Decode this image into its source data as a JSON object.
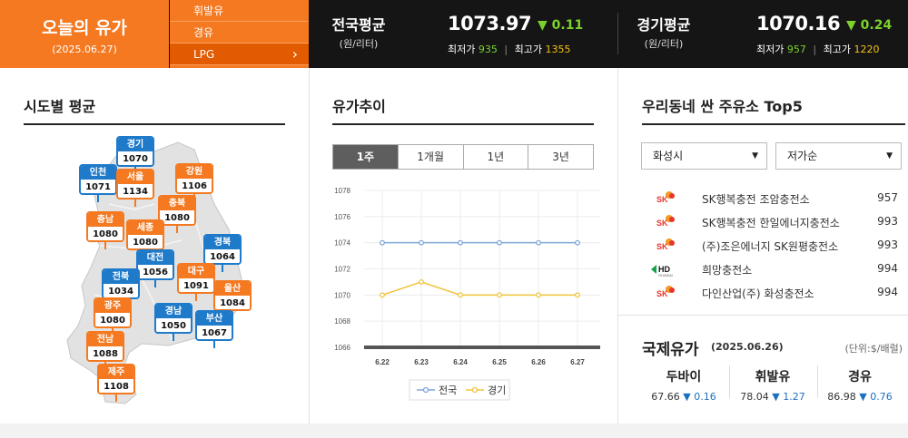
{
  "header": {
    "today_title": "오늘의 유가",
    "today_date": "(2025.06.27)",
    "fuel_tabs": [
      "휘발유",
      "경유",
      "LPG"
    ],
    "fuel_selected": "LPG",
    "national": {
      "label": "전국평균",
      "unit": "(원/리터)",
      "value": "1073.97",
      "change": "▼ 0.11",
      "min_label": "최저가",
      "min": "935",
      "max_label": "최고가",
      "max": "1355"
    },
    "gyeonggi": {
      "label": "경기평균",
      "unit": "(원/리터)",
      "value": "1070.16",
      "change": "▼ 0.24",
      "min_label": "최저가",
      "min": "957",
      "max_label": "최고가",
      "max": "1220"
    }
  },
  "regional": {
    "title": "시도별 평균",
    "regions": [
      {
        "name": "경기",
        "value": "1070",
        "color": "blue"
      },
      {
        "name": "인천",
        "value": "1071",
        "color": "blue"
      },
      {
        "name": "서울",
        "value": "1134",
        "color": "orange"
      },
      {
        "name": "강원",
        "value": "1106",
        "color": "orange"
      },
      {
        "name": "충북",
        "value": "1080",
        "color": "orange"
      },
      {
        "name": "충남",
        "value": "1080",
        "color": "orange"
      },
      {
        "name": "세종",
        "value": "1080",
        "color": "orange"
      },
      {
        "name": "경북",
        "value": "1064",
        "color": "blue"
      },
      {
        "name": "대전",
        "value": "1056",
        "color": "blue"
      },
      {
        "name": "전북",
        "value": "1034",
        "color": "blue"
      },
      {
        "name": "대구",
        "value": "1091",
        "color": "orange"
      },
      {
        "name": "울산",
        "value": "1084",
        "color": "orange"
      },
      {
        "name": "광주",
        "value": "1080",
        "color": "orange"
      },
      {
        "name": "경남",
        "value": "1050",
        "color": "blue"
      },
      {
        "name": "부산",
        "value": "1067",
        "color": "blue"
      },
      {
        "name": "전남",
        "value": "1088",
        "color": "orange"
      },
      {
        "name": "제주",
        "value": "1108",
        "color": "orange"
      }
    ]
  },
  "trend": {
    "title": "유가추이",
    "periods": [
      "1주",
      "1개월",
      "1년",
      "3년"
    ],
    "period_selected": "1주"
  },
  "chart_data": {
    "type": "line",
    "x": [
      "6.22",
      "6.23",
      "6.24",
      "6.25",
      "6.26",
      "6.27"
    ],
    "series": [
      {
        "name": "전국",
        "values": [
          1074,
          1074,
          1074,
          1074,
          1074,
          1074
        ],
        "color": "#7fa7d9"
      },
      {
        "name": "경기",
        "values": [
          1070,
          1071,
          1070,
          1070,
          1070,
          1070
        ],
        "color": "#f0c33c"
      }
    ],
    "yticks": [
      1066,
      1068,
      1070,
      1072,
      1074,
      1076,
      1078
    ],
    "ylim": [
      1066,
      1078
    ],
    "grid": true,
    "legend": "bottom"
  },
  "cheap": {
    "title": "우리동네 싼 주유소 Top5",
    "city": "화성시",
    "sort": "저가순",
    "stations": [
      {
        "name": "SK행복충전 조암충전소",
        "price": "957",
        "brand": "SK gas"
      },
      {
        "name": "SK행복충전 한일에너지충전소",
        "price": "993",
        "brand": "SK gas"
      },
      {
        "name": "(주)조은에너지 SK원평충전소",
        "price": "993",
        "brand": "SK gas"
      },
      {
        "name": "희망충전소",
        "price": "994",
        "brand": "HD HYUNDAI OILBANK"
      },
      {
        "name": "다인산업(주) 화성충전소",
        "price": "994",
        "brand": "SK 에너지"
      }
    ]
  },
  "intl": {
    "title": "국제유가",
    "date": "(2025.06.26)",
    "unit": "(단위:$/배럴)",
    "items": [
      {
        "name": "두바이",
        "value": "67.66",
        "change": "▼ 0.16"
      },
      {
        "name": "휘발유",
        "value": "78.04",
        "change": "▼ 1.27"
      },
      {
        "name": "경유",
        "value": "86.98",
        "change": "▼ 0.76"
      }
    ]
  },
  "colors": {
    "accent": "#f47920",
    "blue": "#1f7ac9",
    "green": "#7bd12e",
    "yellow": "#f3c018"
  }
}
